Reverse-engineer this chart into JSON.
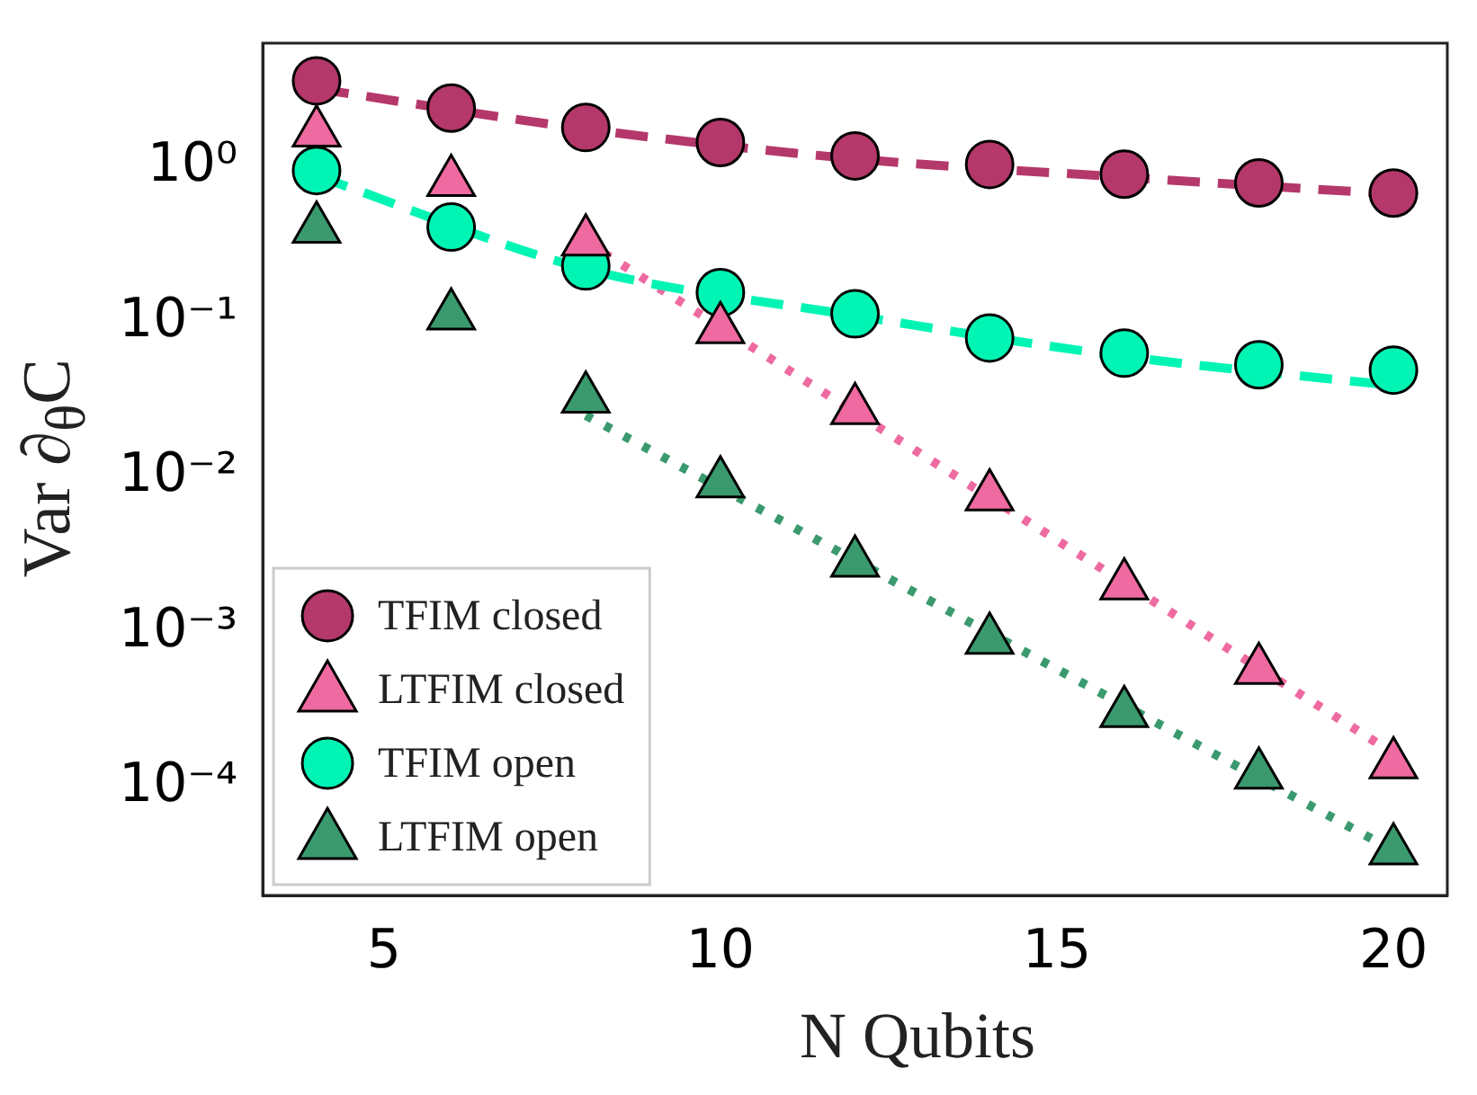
{
  "chart_data": {
    "type": "scatter",
    "xlabel": "N Qubits",
    "ylabel": "Var ∂$_{θ}$C",
    "xlim": [
      3.2,
      20.8
    ],
    "xticks": [
      5,
      10,
      15,
      20
    ],
    "ylim": [
      2e-05,
      6.3
    ],
    "log": "y",
    "yticks": [
      {
        "value": 1,
        "label": "10⁰"
      },
      {
        "value": 0.1,
        "label": "10⁻¹"
      },
      {
        "value": 0.01,
        "label": "10⁻²"
      },
      {
        "value": 0.001,
        "label": "10⁻³"
      },
      {
        "value": 0.0001,
        "label": "10⁻⁴"
      }
    ],
    "grid": false,
    "legend": "bottom left",
    "series": [
      {
        "name": "TFIM closed",
        "color": "#b5386a",
        "marker": "circle",
        "x": [
          4,
          6,
          8,
          10,
          12,
          14,
          16,
          18,
          20
        ],
        "values": [
          3.6,
          2.4,
          1.8,
          1.44,
          1.18,
          1.04,
          0.9,
          0.79,
          0.68
        ]
      },
      {
        "name": "LTFIM closed",
        "color": "#ee6aa0",
        "marker": "triangle",
        "x": [
          4,
          6,
          8,
          10,
          12,
          14,
          16,
          18,
          20
        ],
        "values": [
          1.67,
          0.8,
          0.33,
          0.09,
          0.027,
          0.0075,
          0.002,
          0.00057,
          0.00014
        ]
      },
      {
        "name": "TFIM open",
        "color": "#00f5b4",
        "marker": "circle",
        "x": [
          4,
          6,
          8,
          10,
          12,
          14,
          16,
          18,
          20
        ],
        "values": [
          0.95,
          0.41,
          0.23,
          0.155,
          0.113,
          0.079,
          0.063,
          0.053,
          0.049
        ]
      },
      {
        "name": "LTFIM open",
        "color": "#3a9a6e",
        "marker": "triangle",
        "x": [
          4,
          6,
          8,
          10,
          12,
          14,
          16,
          18,
          20
        ],
        "values": [
          0.4,
          0.11,
          0.032,
          0.0091,
          0.0028,
          0.00089,
          0.0003,
          0.00012,
          3.9e-05
        ]
      },
      {
        "type": "line",
        "color": "#b5386a",
        "marker": "none",
        "line_style": "dashed",
        "x": [
          4,
          8,
          12,
          16,
          20
        ],
        "values": [
          3.2,
          1.76,
          1.13,
          0.86,
          0.67
        ]
      },
      {
        "type": "line",
        "color": "#00f5b4",
        "marker": "none",
        "line_style": "dashed",
        "x": [
          4,
          8,
          12,
          16,
          20
        ],
        "values": [
          0.88,
          0.22,
          0.11,
          0.06,
          0.039
        ]
      },
      {
        "type": "line",
        "color": "#ee6aa0",
        "marker": "none",
        "line_style": "dotted",
        "x": [
          8,
          20
        ],
        "values": [
          0.33,
          0.000165
        ]
      },
      {
        "type": "line",
        "color": "#3a9a6e",
        "marker": "none",
        "line_style": "dotted",
        "x": [
          8,
          20
        ],
        "values": [
          0.025,
          3.9e-05
        ]
      }
    ]
  }
}
